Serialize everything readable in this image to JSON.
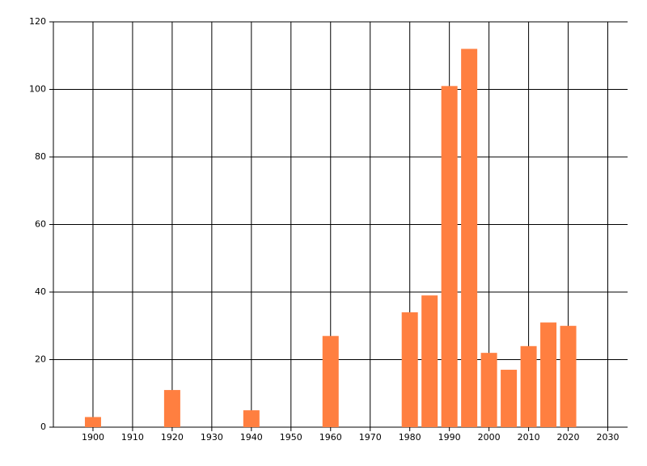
{
  "chart_data": {
    "type": "bar",
    "x": [
      1900,
      1920,
      1940,
      1960,
      1980,
      1985,
      1990,
      1995,
      2000,
      2005,
      2010,
      2015,
      2020
    ],
    "values": [
      3,
      11,
      5,
      27,
      34,
      39,
      101,
      112,
      22,
      17,
      24,
      31,
      30
    ],
    "color": "#ff7f40",
    "xlim": [
      1890,
      2035
    ],
    "xticks": [
      1900,
      1910,
      1920,
      1930,
      1940,
      1950,
      1960,
      1970,
      1980,
      1990,
      2000,
      2010,
      2020,
      2030
    ],
    "ylim": [
      0,
      120
    ],
    "yticks": [
      0,
      20,
      40,
      60,
      80,
      100,
      120
    ],
    "grid": true
  }
}
